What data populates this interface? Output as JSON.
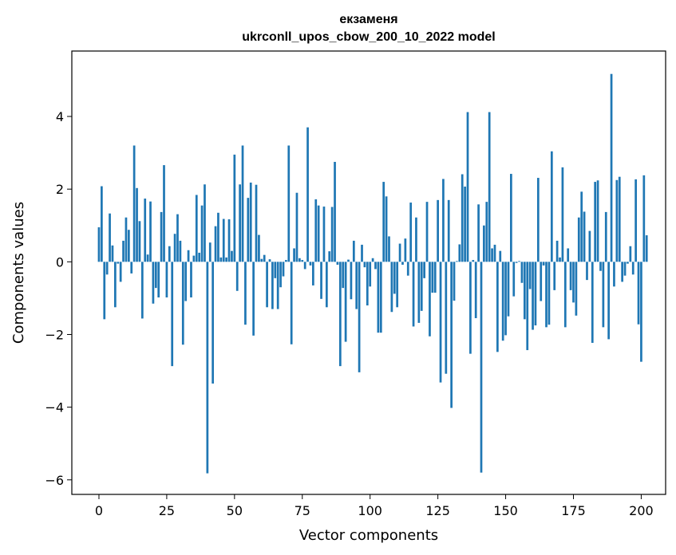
{
  "chart_data": {
    "type": "bar",
    "title": "екзаменя",
    "subtitle": "ukrconll_upos_cbow_200_10_2022 model",
    "xlabel": "Vector components",
    "ylabel": "Components values",
    "xlim": [
      -10,
      209
    ],
    "ylim": [
      -6.4,
      5.8
    ],
    "xticks": [
      0,
      25,
      50,
      75,
      100,
      125,
      150,
      175,
      200
    ],
    "yticks": [
      -6,
      -4,
      -2,
      0,
      2,
      4
    ],
    "grid": false,
    "bar_color": "#1f77b4",
    "values": [
      0.95,
      2.08,
      -1.58,
      -0.35,
      1.33,
      0.45,
      -1.25,
      -0.05,
      -0.55,
      0.58,
      1.22,
      0.88,
      -0.32,
      3.2,
      2.03,
      1.12,
      -1.56,
      1.74,
      0.2,
      1.66,
      -1.15,
      -0.72,
      -0.98,
      1.37,
      2.66,
      -0.98,
      0.43,
      -2.87,
      0.77,
      1.31,
      0.58,
      -2.28,
      -1.08,
      0.32,
      -0.98,
      0.17,
      1.84,
      0.25,
      1.55,
      2.13,
      -5.82,
      0.53,
      -3.35,
      0.98,
      1.35,
      0.12,
      1.18,
      0.12,
      1.17,
      0.3,
      2.95,
      -0.8,
      2.13,
      3.2,
      -1.73,
      1.76,
      2.18,
      -2.03,
      2.12,
      0.74,
      0.08,
      0.19,
      -1.25,
      0.07,
      -1.3,
      -0.45,
      -1.3,
      -0.7,
      -0.4,
      0.05,
      3.2,
      -2.27,
      0.37,
      1.9,
      0.1,
      0.05,
      -0.2,
      3.7,
      -0.1,
      -0.65,
      1.72,
      1.55,
      -1.02,
      1.52,
      -1.25,
      0.29,
      1.51,
      2.75,
      -0.08,
      -2.87,
      -0.72,
      -2.2,
      0.06,
      -1.03,
      0.58,
      -1.3,
      -3.04,
      0.47,
      -0.15,
      -1.2,
      -0.68,
      0.1,
      -0.2,
      -1.95,
      -1.95,
      2.2,
      1.8,
      0.7,
      -1.38,
      -0.88,
      -1.25,
      0.5,
      -0.08,
      0.64,
      -0.38,
      1.63,
      -1.78,
      1.22,
      -1.68,
      -1.35,
      -0.45,
      1.65,
      -2.05,
      -0.85,
      -0.85,
      1.7,
      -3.32,
      2.28,
      -3.08,
      1.7,
      -4.02,
      -1.07,
      0.02,
      0.48,
      2.41,
      2.07,
      4.12,
      -2.53,
      0.05,
      -1.55,
      1.58,
      -5.8,
      1.0,
      1.65,
      4.12,
      0.37,
      0.47,
      -2.48,
      0.3,
      -2.17,
      -2.02,
      -1.5,
      2.42,
      -0.95,
      -0.03,
      0.02,
      -0.58,
      -1.58,
      -2.43,
      -0.75,
      -1.87,
      -1.75,
      2.31,
      -1.08,
      -0.1,
      -1.8,
      -1.73,
      3.04,
      -0.78,
      0.58,
      0.12,
      2.6,
      -1.8,
      0.37,
      -0.78,
      -1.12,
      -1.48,
      1.22,
      1.93,
      1.38,
      -0.5,
      0.85,
      -2.23,
      2.2,
      2.24,
      -0.25,
      -1.8,
      1.37,
      -2.13,
      5.17,
      -0.68,
      2.25,
      2.34,
      -0.55,
      -0.38,
      -0.05,
      0.43,
      -0.35,
      2.27,
      -1.72,
      -2.75,
      2.38,
      0.73
    ]
  }
}
